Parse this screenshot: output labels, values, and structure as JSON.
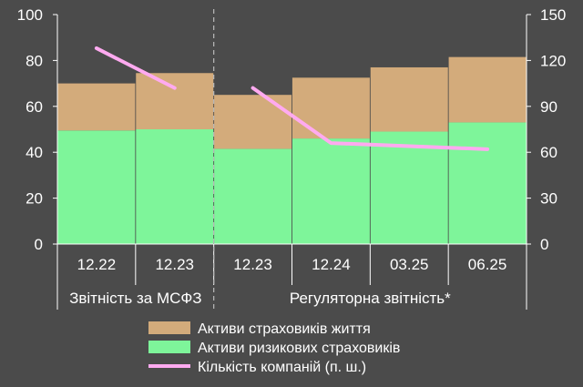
{
  "chart_data": {
    "type": "bar",
    "stacked": true,
    "categories": [
      "12.22",
      "12.23",
      "12.23",
      "12.24",
      "03.25",
      "06.25"
    ],
    "groups": [
      {
        "label": "Звітність за МСФЗ",
        "categories": [
          0,
          1
        ]
      },
      {
        "label": "Регуляторна звітність*",
        "categories": [
          2,
          3,
          4,
          5
        ]
      }
    ],
    "series": [
      {
        "name": "Активи ризикових страховиків",
        "kind": "bar",
        "axis": "left",
        "color": "#7ef59a",
        "values": [
          49.5,
          50,
          41.5,
          46,
          49,
          53
        ]
      },
      {
        "name": "Активи страховиків життя",
        "kind": "bar",
        "axis": "left",
        "color": "#d3ab7b",
        "values": [
          20.5,
          24.5,
          23.5,
          26.5,
          28,
          28.5
        ]
      },
      {
        "name": "Кількість компаній (п. ш.)",
        "kind": "line",
        "axis": "right",
        "color": "#ffaaf0",
        "segments": [
          [
            0,
            1
          ],
          [
            2,
            3,
            4,
            5
          ]
        ],
        "values": [
          128,
          102,
          102,
          66,
          64,
          62
        ]
      }
    ],
    "y_left": {
      "min": 0,
      "max": 100,
      "ticks": [
        0,
        20,
        40,
        60,
        80,
        100
      ]
    },
    "y_right": {
      "min": 0,
      "max": 150,
      "ticks": [
        0,
        30,
        60,
        90,
        120,
        150
      ]
    },
    "legend": [
      {
        "label": "Активи страховиків життя",
        "symbol": "box",
        "color": "#d3ab7b"
      },
      {
        "label": "Активи ризикових страховиків",
        "symbol": "box",
        "color": "#7ef59a"
      },
      {
        "label": "Кількість компаній (п. ш.)",
        "symbol": "line",
        "color": "#ffaaf0"
      }
    ],
    "legend_position": "bottom-right",
    "grid": false
  },
  "colors": {
    "background": "#4b4b4b",
    "text": "#ffffff",
    "axis": "#ffffff",
    "separator": "#bbbbbb"
  }
}
